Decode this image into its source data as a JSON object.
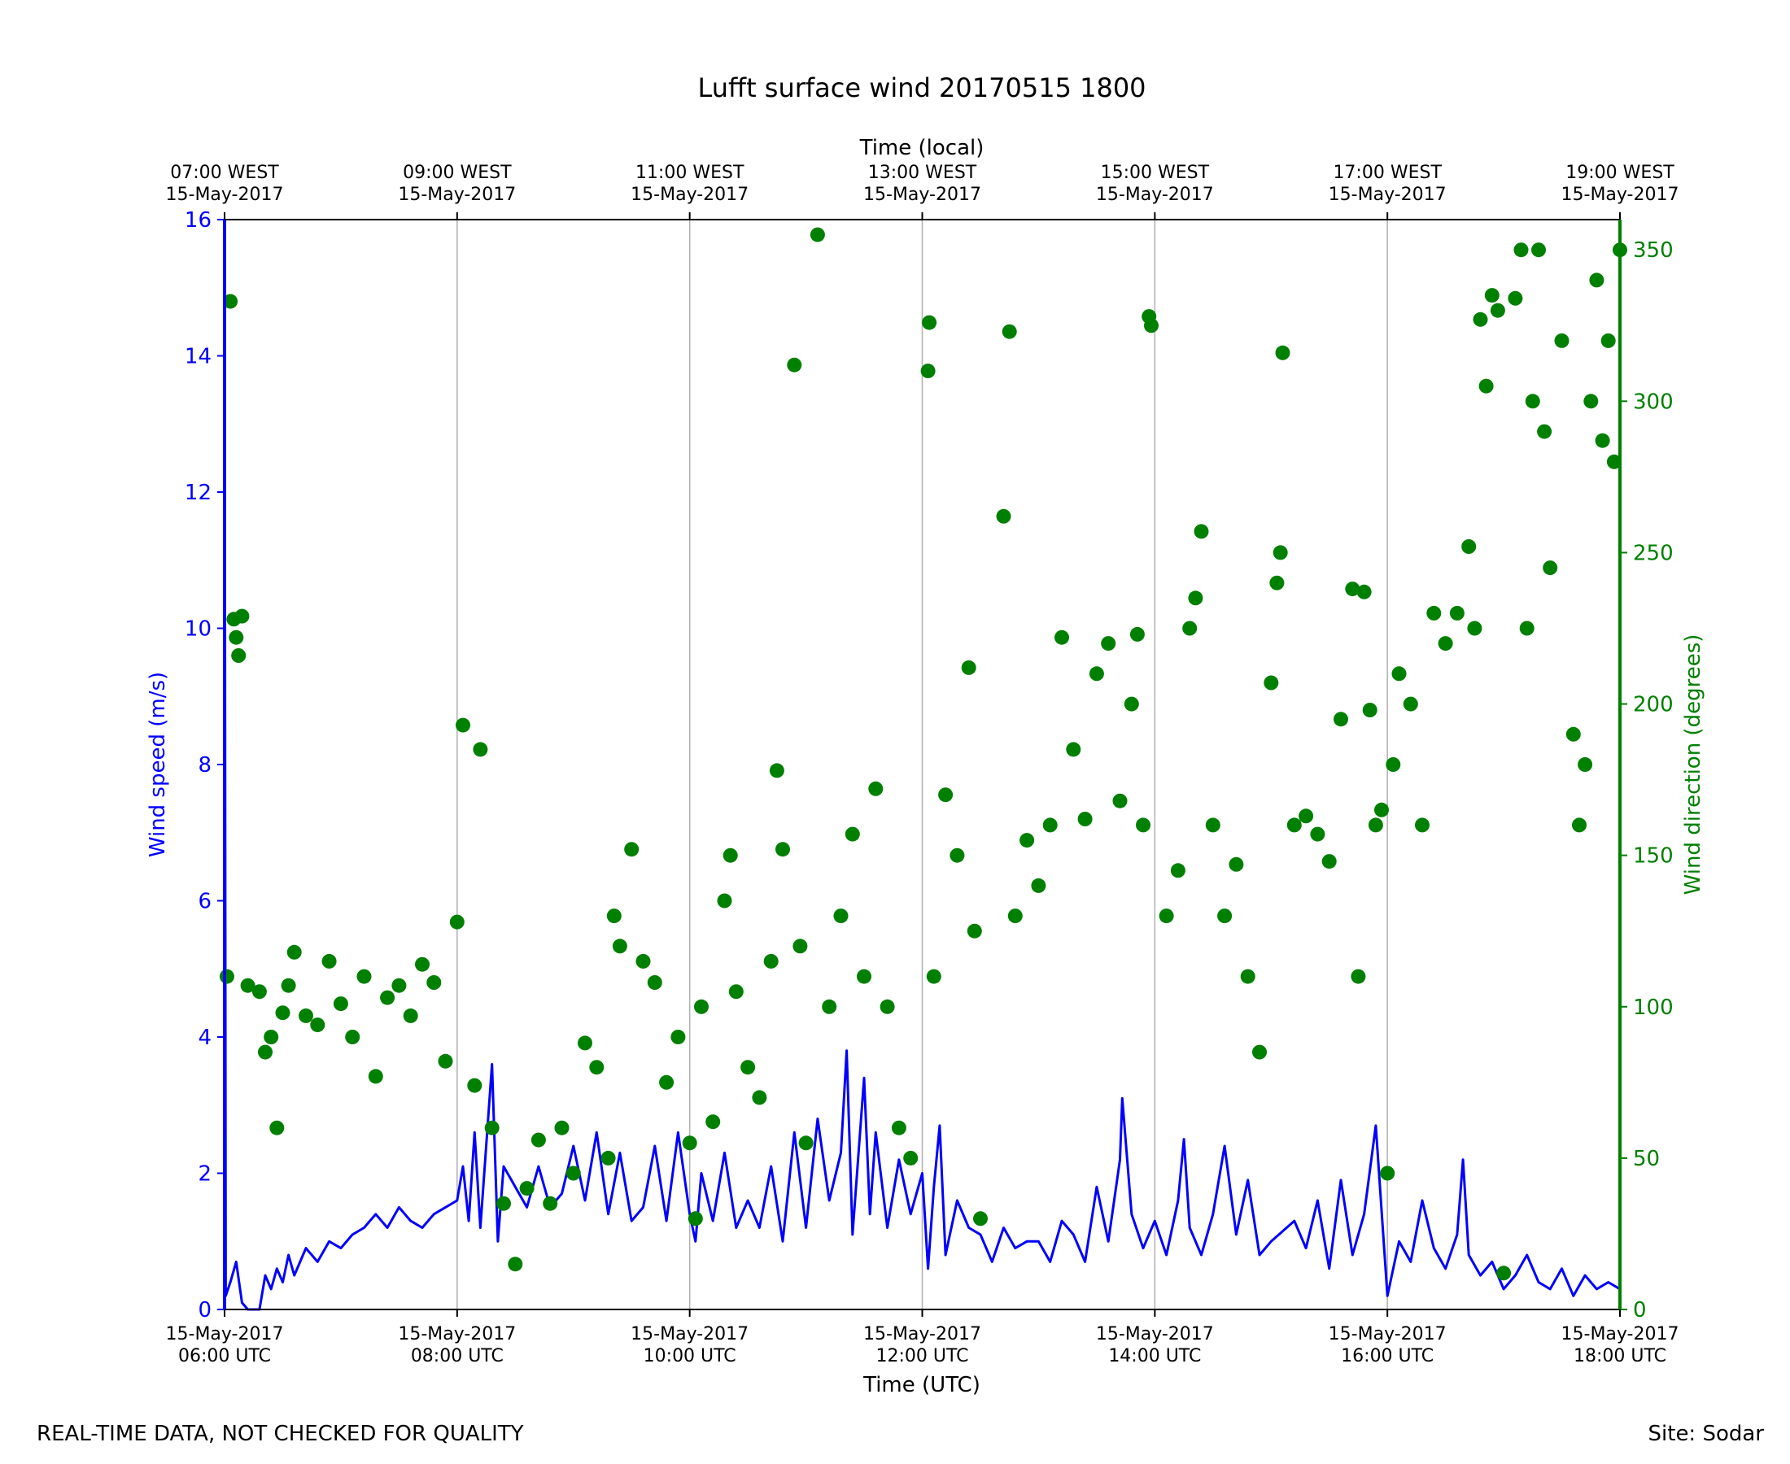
{
  "chart_data": {
    "type": "scatter",
    "title": "Lufft surface wind 20170515 1800",
    "xlabel": "Time (UTC)",
    "xlabel_top": "Time (local)",
    "ylabel_left": "Wind speed (m/s)",
    "ylabel_right": "Wind direction (degrees)",
    "x_range_hours_utc": [
      6,
      18
    ],
    "ylim_left": [
      0,
      16
    ],
    "ylim_right": [
      0,
      360
    ],
    "left_ticks": [
      0,
      2,
      4,
      6,
      8,
      10,
      12,
      14,
      16
    ],
    "right_ticks": [
      0,
      50,
      100,
      150,
      200,
      250,
      300,
      350
    ],
    "bottom_ticks": [
      {
        "hour": 6,
        "date": "15-May-2017",
        "time": "06:00 UTC"
      },
      {
        "hour": 8,
        "date": "15-May-2017",
        "time": "08:00 UTC"
      },
      {
        "hour": 10,
        "date": "15-May-2017",
        "time": "10:00 UTC"
      },
      {
        "hour": 12,
        "date": "15-May-2017",
        "time": "12:00 UTC"
      },
      {
        "hour": 14,
        "date": "15-May-2017",
        "time": "14:00 UTC"
      },
      {
        "hour": 16,
        "date": "15-May-2017",
        "time": "16:00 UTC"
      },
      {
        "hour": 18,
        "date": "15-May-2017",
        "time": "18:00 UTC"
      }
    ],
    "top_ticks": [
      {
        "hour": 6,
        "time": "07:00 WEST",
        "date": "15-May-2017"
      },
      {
        "hour": 8,
        "time": "09:00 WEST",
        "date": "15-May-2017"
      },
      {
        "hour": 10,
        "time": "11:00 WEST",
        "date": "15-May-2017"
      },
      {
        "hour": 12,
        "time": "13:00 WEST",
        "date": "15-May-2017"
      },
      {
        "hour": 14,
        "time": "15:00 WEST",
        "date": "15-May-2017"
      },
      {
        "hour": 16,
        "time": "17:00 WEST",
        "date": "15-May-2017"
      },
      {
        "hour": 18,
        "time": "19:00 WEST",
        "date": "15-May-2017"
      }
    ],
    "grid": "vertical at major x ticks",
    "series": [
      {
        "name": "Wind speed",
        "axis": "left",
        "style": "line",
        "color": "#0000ff",
        "points": [
          [
            6.0,
            16.0
          ],
          [
            6.01,
            0.2
          ],
          [
            6.05,
            0.4
          ],
          [
            6.1,
            0.7
          ],
          [
            6.15,
            0.1
          ],
          [
            6.2,
            0.0
          ],
          [
            6.3,
            0.0
          ],
          [
            6.35,
            0.5
          ],
          [
            6.4,
            0.3
          ],
          [
            6.45,
            0.6
          ],
          [
            6.5,
            0.4
          ],
          [
            6.55,
            0.8
          ],
          [
            6.6,
            0.5
          ],
          [
            6.7,
            0.9
          ],
          [
            6.8,
            0.7
          ],
          [
            6.9,
            1.0
          ],
          [
            7.0,
            0.9
          ],
          [
            7.1,
            1.1
          ],
          [
            7.2,
            1.2
          ],
          [
            7.3,
            1.4
          ],
          [
            7.4,
            1.2
          ],
          [
            7.5,
            1.5
          ],
          [
            7.6,
            1.3
          ],
          [
            7.7,
            1.2
          ],
          [
            7.8,
            1.4
          ],
          [
            7.9,
            1.5
          ],
          [
            8.0,
            1.6
          ],
          [
            8.05,
            2.1
          ],
          [
            8.1,
            1.3
          ],
          [
            8.15,
            2.6
          ],
          [
            8.2,
            1.2
          ],
          [
            8.3,
            3.6
          ],
          [
            8.35,
            1.0
          ],
          [
            8.4,
            2.1
          ],
          [
            8.5,
            1.8
          ],
          [
            8.6,
            1.5
          ],
          [
            8.7,
            2.1
          ],
          [
            8.8,
            1.5
          ],
          [
            8.9,
            1.7
          ],
          [
            9.0,
            2.4
          ],
          [
            9.1,
            1.6
          ],
          [
            9.2,
            2.6
          ],
          [
            9.3,
            1.4
          ],
          [
            9.4,
            2.3
          ],
          [
            9.5,
            1.3
          ],
          [
            9.6,
            1.5
          ],
          [
            9.7,
            2.4
          ],
          [
            9.8,
            1.3
          ],
          [
            9.9,
            2.6
          ],
          [
            10.0,
            1.4
          ],
          [
            10.05,
            1.0
          ],
          [
            10.1,
            2.0
          ],
          [
            10.2,
            1.3
          ],
          [
            10.3,
            2.3
          ],
          [
            10.4,
            1.2
          ],
          [
            10.5,
            1.6
          ],
          [
            10.6,
            1.2
          ],
          [
            10.7,
            2.1
          ],
          [
            10.8,
            1.0
          ],
          [
            10.9,
            2.6
          ],
          [
            11.0,
            1.2
          ],
          [
            11.1,
            2.8
          ],
          [
            11.2,
            1.6
          ],
          [
            11.3,
            2.3
          ],
          [
            11.35,
            3.8
          ],
          [
            11.4,
            1.1
          ],
          [
            11.5,
            3.4
          ],
          [
            11.55,
            1.4
          ],
          [
            11.6,
            2.6
          ],
          [
            11.7,
            1.2
          ],
          [
            11.8,
            2.2
          ],
          [
            11.9,
            1.4
          ],
          [
            12.0,
            2.0
          ],
          [
            12.05,
            0.6
          ],
          [
            12.1,
            1.8
          ],
          [
            12.15,
            2.7
          ],
          [
            12.2,
            0.8
          ],
          [
            12.3,
            1.6
          ],
          [
            12.4,
            1.2
          ],
          [
            12.5,
            1.1
          ],
          [
            12.6,
            0.7
          ],
          [
            12.7,
            1.2
          ],
          [
            12.8,
            0.9
          ],
          [
            12.9,
            1.0
          ],
          [
            13.0,
            1.0
          ],
          [
            13.1,
            0.7
          ],
          [
            13.2,
            1.3
          ],
          [
            13.3,
            1.1
          ],
          [
            13.4,
            0.7
          ],
          [
            13.5,
            1.8
          ],
          [
            13.6,
            1.0
          ],
          [
            13.7,
            2.2
          ],
          [
            13.72,
            3.1
          ],
          [
            13.8,
            1.4
          ],
          [
            13.9,
            0.9
          ],
          [
            14.0,
            1.3
          ],
          [
            14.1,
            0.8
          ],
          [
            14.2,
            1.6
          ],
          [
            14.25,
            2.5
          ],
          [
            14.3,
            1.2
          ],
          [
            14.4,
            0.8
          ],
          [
            14.5,
            1.4
          ],
          [
            14.6,
            2.4
          ],
          [
            14.7,
            1.1
          ],
          [
            14.8,
            1.9
          ],
          [
            14.9,
            0.8
          ],
          [
            15.0,
            1.0
          ],
          [
            15.2,
            1.3
          ],
          [
            15.3,
            0.9
          ],
          [
            15.4,
            1.6
          ],
          [
            15.5,
            0.6
          ],
          [
            15.6,
            1.9
          ],
          [
            15.7,
            0.8
          ],
          [
            15.8,
            1.4
          ],
          [
            15.9,
            2.7
          ],
          [
            16.0,
            0.2
          ],
          [
            16.1,
            1.0
          ],
          [
            16.2,
            0.7
          ],
          [
            16.3,
            1.6
          ],
          [
            16.4,
            0.9
          ],
          [
            16.5,
            0.6
          ],
          [
            16.6,
            1.1
          ],
          [
            16.65,
            2.2
          ],
          [
            16.7,
            0.8
          ],
          [
            16.8,
            0.5
          ],
          [
            16.9,
            0.7
          ],
          [
            17.0,
            0.3
          ],
          [
            17.1,
            0.5
          ],
          [
            17.2,
            0.8
          ],
          [
            17.3,
            0.4
          ],
          [
            17.4,
            0.3
          ],
          [
            17.5,
            0.6
          ],
          [
            17.6,
            0.2
          ],
          [
            17.7,
            0.5
          ],
          [
            17.8,
            0.3
          ],
          [
            17.9,
            0.4
          ],
          [
            18.0,
            0.3
          ]
        ]
      },
      {
        "name": "Wind direction",
        "axis": "right",
        "style": "markers",
        "color": "#008000",
        "points": [
          [
            6.02,
            110
          ],
          [
            6.05,
            333
          ],
          [
            6.08,
            228
          ],
          [
            6.1,
            222
          ],
          [
            6.12,
            216
          ],
          [
            6.15,
            229
          ],
          [
            6.2,
            107
          ],
          [
            6.3,
            105
          ],
          [
            6.35,
            85
          ],
          [
            6.4,
            90
          ],
          [
            6.45,
            60
          ],
          [
            6.5,
            98
          ],
          [
            6.55,
            107
          ],
          [
            6.6,
            118
          ],
          [
            6.7,
            97
          ],
          [
            6.8,
            94
          ],
          [
            6.9,
            115
          ],
          [
            7.0,
            101
          ],
          [
            7.1,
            90
          ],
          [
            7.2,
            110
          ],
          [
            7.3,
            77
          ],
          [
            7.4,
            103
          ],
          [
            7.5,
            107
          ],
          [
            7.6,
            97
          ],
          [
            7.7,
            114
          ],
          [
            7.8,
            108
          ],
          [
            7.9,
            82
          ],
          [
            8.0,
            128
          ],
          [
            8.05,
            193
          ],
          [
            8.15,
            74
          ],
          [
            8.2,
            185
          ],
          [
            8.3,
            60
          ],
          [
            8.4,
            35
          ],
          [
            8.5,
            15
          ],
          [
            8.6,
            40
          ],
          [
            8.7,
            56
          ],
          [
            8.8,
            35
          ],
          [
            8.9,
            60
          ],
          [
            9.0,
            45
          ],
          [
            9.1,
            88
          ],
          [
            9.2,
            80
          ],
          [
            9.3,
            50
          ],
          [
            9.35,
            130
          ],
          [
            9.4,
            120
          ],
          [
            9.5,
            152
          ],
          [
            9.6,
            115
          ],
          [
            9.7,
            108
          ],
          [
            9.8,
            75
          ],
          [
            9.9,
            90
          ],
          [
            10.0,
            55
          ],
          [
            10.05,
            30
          ],
          [
            10.1,
            100
          ],
          [
            10.2,
            62
          ],
          [
            10.3,
            135
          ],
          [
            10.35,
            150
          ],
          [
            10.4,
            105
          ],
          [
            10.5,
            80
          ],
          [
            10.6,
            70
          ],
          [
            10.7,
            115
          ],
          [
            10.75,
            178
          ],
          [
            10.8,
            152
          ],
          [
            10.9,
            312
          ],
          [
            10.95,
            120
          ],
          [
            11.0,
            55
          ],
          [
            11.1,
            355
          ],
          [
            11.2,
            100
          ],
          [
            11.3,
            130
          ],
          [
            11.4,
            157
          ],
          [
            11.5,
            110
          ],
          [
            11.6,
            172
          ],
          [
            11.7,
            100
          ],
          [
            11.8,
            60
          ],
          [
            11.9,
            50
          ],
          [
            12.05,
            310
          ],
          [
            12.06,
            326
          ],
          [
            12.1,
            110
          ],
          [
            12.2,
            170
          ],
          [
            12.3,
            150
          ],
          [
            12.4,
            212
          ],
          [
            12.45,
            125
          ],
          [
            12.5,
            30
          ],
          [
            12.7,
            262
          ],
          [
            12.75,
            323
          ],
          [
            12.8,
            130
          ],
          [
            12.9,
            155
          ],
          [
            13.0,
            140
          ],
          [
            13.1,
            160
          ],
          [
            13.2,
            222
          ],
          [
            13.3,
            185
          ],
          [
            13.4,
            162
          ],
          [
            13.5,
            210
          ],
          [
            13.6,
            220
          ],
          [
            13.7,
            168
          ],
          [
            13.8,
            200
          ],
          [
            13.85,
            223
          ],
          [
            13.9,
            160
          ],
          [
            13.95,
            328
          ],
          [
            13.97,
            325
          ],
          [
            14.1,
            130
          ],
          [
            14.2,
            145
          ],
          [
            14.3,
            225
          ],
          [
            14.35,
            235
          ],
          [
            14.4,
            257
          ],
          [
            14.5,
            160
          ],
          [
            14.6,
            130
          ],
          [
            14.7,
            147
          ],
          [
            14.8,
            110
          ],
          [
            14.9,
            85
          ],
          [
            15.0,
            207
          ],
          [
            15.05,
            240
          ],
          [
            15.08,
            250
          ],
          [
            15.1,
            316
          ],
          [
            15.2,
            160
          ],
          [
            15.3,
            163
          ],
          [
            15.4,
            157
          ],
          [
            15.5,
            148
          ],
          [
            15.6,
            195
          ],
          [
            15.7,
            238
          ],
          [
            15.75,
            110
          ],
          [
            15.8,
            237
          ],
          [
            15.85,
            198
          ],
          [
            15.9,
            160
          ],
          [
            15.95,
            165
          ],
          [
            16.0,
            45
          ],
          [
            16.05,
            180
          ],
          [
            16.1,
            210
          ],
          [
            16.2,
            200
          ],
          [
            16.3,
            160
          ],
          [
            16.4,
            230
          ],
          [
            16.5,
            220
          ],
          [
            16.6,
            230
          ],
          [
            16.7,
            252
          ],
          [
            16.75,
            225
          ],
          [
            16.8,
            327
          ],
          [
            16.85,
            305
          ],
          [
            16.9,
            335
          ],
          [
            16.95,
            330
          ],
          [
            17.0,
            12
          ],
          [
            17.1,
            334
          ],
          [
            17.15,
            350
          ],
          [
            17.2,
            225
          ],
          [
            17.25,
            300
          ],
          [
            17.3,
            350
          ],
          [
            17.35,
            290
          ],
          [
            17.4,
            245
          ],
          [
            17.5,
            320
          ],
          [
            17.6,
            190
          ],
          [
            17.65,
            160
          ],
          [
            17.7,
            180
          ],
          [
            17.75,
            300
          ],
          [
            17.8,
            340
          ],
          [
            17.85,
            287
          ],
          [
            17.9,
            320
          ],
          [
            17.95,
            280
          ],
          [
            18.0,
            350
          ]
        ]
      }
    ]
  },
  "footer": {
    "left": "REAL-TIME DATA, NOT CHECKED FOR QUALITY",
    "right": "Site: Sodar"
  }
}
